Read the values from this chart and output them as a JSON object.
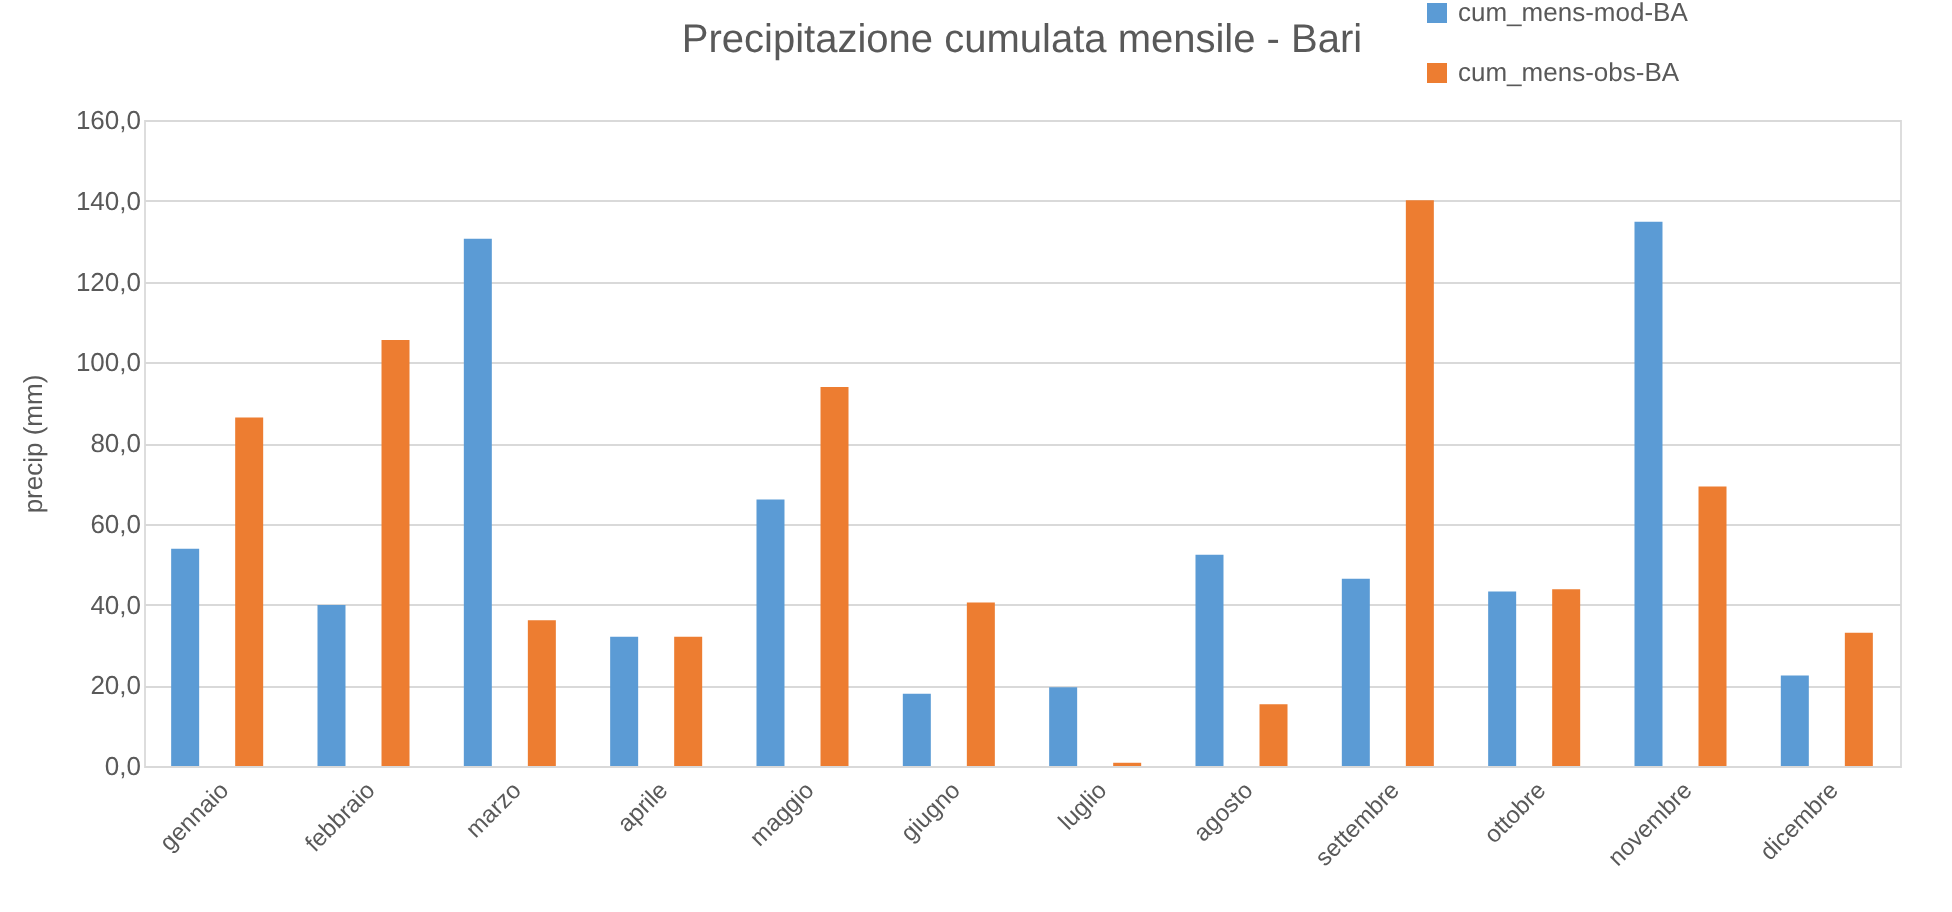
{
  "chart_data": {
    "type": "bar",
    "title": "Precipitazione cumulata mensile - Bari",
    "ylabel": "precip (mm)",
    "categories": [
      "gennaio",
      "febbraio",
      "marzo",
      "aprile",
      "maggio",
      "giugno",
      "luglio",
      "agosto",
      "settembre",
      "ottobre",
      "novembre",
      "dicembre"
    ],
    "series": [
      {
        "name": "cum_mens-mod-BA",
        "color": "#5b9bd5",
        "values": [
          53.8,
          39.9,
          130.6,
          32.0,
          66.0,
          17.9,
          19.5,
          52.3,
          46.4,
          43.2,
          134.8,
          22.4
        ]
      },
      {
        "name": "cum_mens-obs-BA",
        "color": "#ed7d31",
        "values": [
          86.3,
          105.5,
          36.1,
          32.0,
          93.9,
          40.5,
          0.8,
          15.3,
          140.1,
          43.8,
          69.2,
          33.0
        ]
      }
    ],
    "ylim": [
      0,
      160
    ],
    "yticks": [
      {
        "value": 0,
        "label": "0,0"
      },
      {
        "value": 20,
        "label": "20,0"
      },
      {
        "value": 40,
        "label": "40,0"
      },
      {
        "value": 60,
        "label": "60,0"
      },
      {
        "value": 80,
        "label": "80,0"
      },
      {
        "value": 100,
        "label": "100,0"
      },
      {
        "value": 120,
        "label": "120,0"
      },
      {
        "value": 140,
        "label": "140,0"
      },
      {
        "value": 160,
        "label": "160,0"
      }
    ],
    "grid": "y",
    "legend": "top right"
  }
}
